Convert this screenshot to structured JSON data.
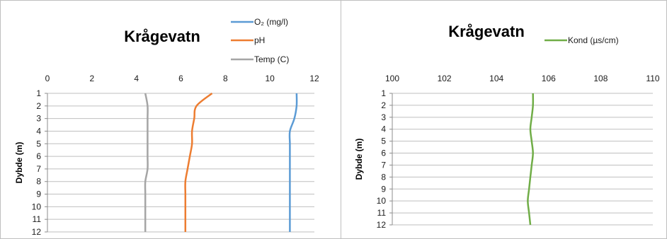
{
  "chart_data": [
    {
      "type": "line",
      "title": "Krågevatn",
      "xlabel": "",
      "ylabel": "Dybde (m)",
      "xlim": [
        0,
        12
      ],
      "ylim": [
        1,
        12
      ],
      "x_ticks": [
        "0",
        "2",
        "4",
        "6",
        "8",
        "10",
        "12"
      ],
      "y_ticks": [
        "1",
        "2",
        "3",
        "4",
        "5",
        "6",
        "7",
        "8",
        "9",
        "10",
        "11",
        "12"
      ],
      "y_reversed": true,
      "grid": "horizontal",
      "legend": "top-right",
      "depth": [
        1,
        2,
        3,
        4,
        5,
        6,
        7,
        8,
        9,
        10,
        11,
        12
      ],
      "series": [
        {
          "name": "O₂ (mg/l)",
          "color": "#5b9bd5",
          "values": [
            11.2,
            11.2,
            11.1,
            10.9,
            10.9,
            10.9,
            10.9,
            10.9,
            10.9,
            10.9,
            10.9,
            10.9
          ]
        },
        {
          "name": "pH",
          "color": "#ed7d31",
          "values": [
            7.4,
            6.7,
            6.6,
            6.5,
            6.5,
            6.4,
            6.3,
            6.2,
            6.2,
            6.2,
            6.2,
            6.2
          ]
        },
        {
          "name": "Temp (C)",
          "color": "#a5a5a5",
          "values": [
            4.4,
            4.5,
            4.5,
            4.5,
            4.5,
            4.5,
            4.5,
            4.4,
            4.4,
            4.4,
            4.4,
            4.4
          ]
        }
      ]
    },
    {
      "type": "line",
      "title": "Krågevatn",
      "xlabel": "",
      "ylabel": "Dybde (m)",
      "xlim": [
        100,
        110
      ],
      "ylim": [
        1,
        12
      ],
      "x_ticks": [
        "100",
        "102",
        "104",
        "106",
        "108",
        "110"
      ],
      "y_ticks": [
        "1",
        "2",
        "3",
        "4",
        "5",
        "6",
        "7",
        "8",
        "9",
        "10",
        "11",
        "12"
      ],
      "y_reversed": true,
      "grid": "horizontal",
      "legend": "top-right",
      "depth": [
        1,
        2,
        3,
        4,
        5,
        6,
        7,
        8,
        9,
        10,
        11,
        12
      ],
      "series": [
        {
          "name": "Kond (µs/cm)",
          "color": "#70ad47",
          "values": [
            105.4,
            105.4,
            105.35,
            105.3,
            105.35,
            105.4,
            105.35,
            105.3,
            105.25,
            105.2,
            105.25,
            105.3
          ]
        }
      ]
    }
  ]
}
